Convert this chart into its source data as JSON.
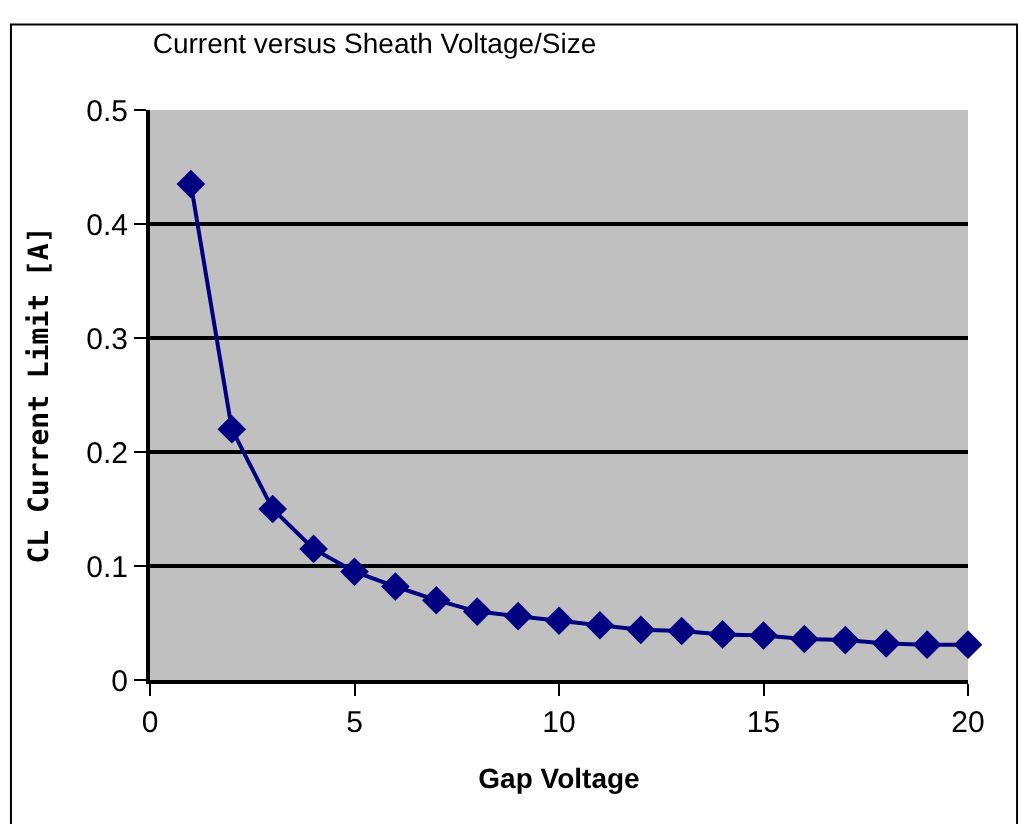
{
  "chart_data": {
    "type": "line",
    "title": "Current versus Sheath Voltage/Size",
    "xlabel": "Gap Voltage",
    "ylabel": "CL Current Limit [A]",
    "x": [
      1,
      2,
      3,
      4,
      5,
      6,
      7,
      8,
      9,
      10,
      11,
      12,
      13,
      14,
      15,
      16,
      17,
      18,
      19,
      20
    ],
    "series": [
      {
        "color": "#000080",
        "values": [
          0.435,
          0.22,
          0.15,
          0.115,
          0.095,
          0.082,
          0.07,
          0.06,
          0.056,
          0.052,
          0.048,
          0.044,
          0.043,
          0.04,
          0.039,
          0.036,
          0.035,
          0.032,
          0.031,
          0.031
        ]
      }
    ],
    "xlim": [
      0,
      20
    ],
    "xticks": [
      0,
      5,
      10,
      15,
      20
    ],
    "ylim": [
      0,
      0.5
    ],
    "yticks": [
      0,
      0.1,
      0.2,
      0.3,
      0.4,
      0.5
    ],
    "grid": "y",
    "legend": false,
    "marker": "diamond",
    "line_style": "solid"
  }
}
